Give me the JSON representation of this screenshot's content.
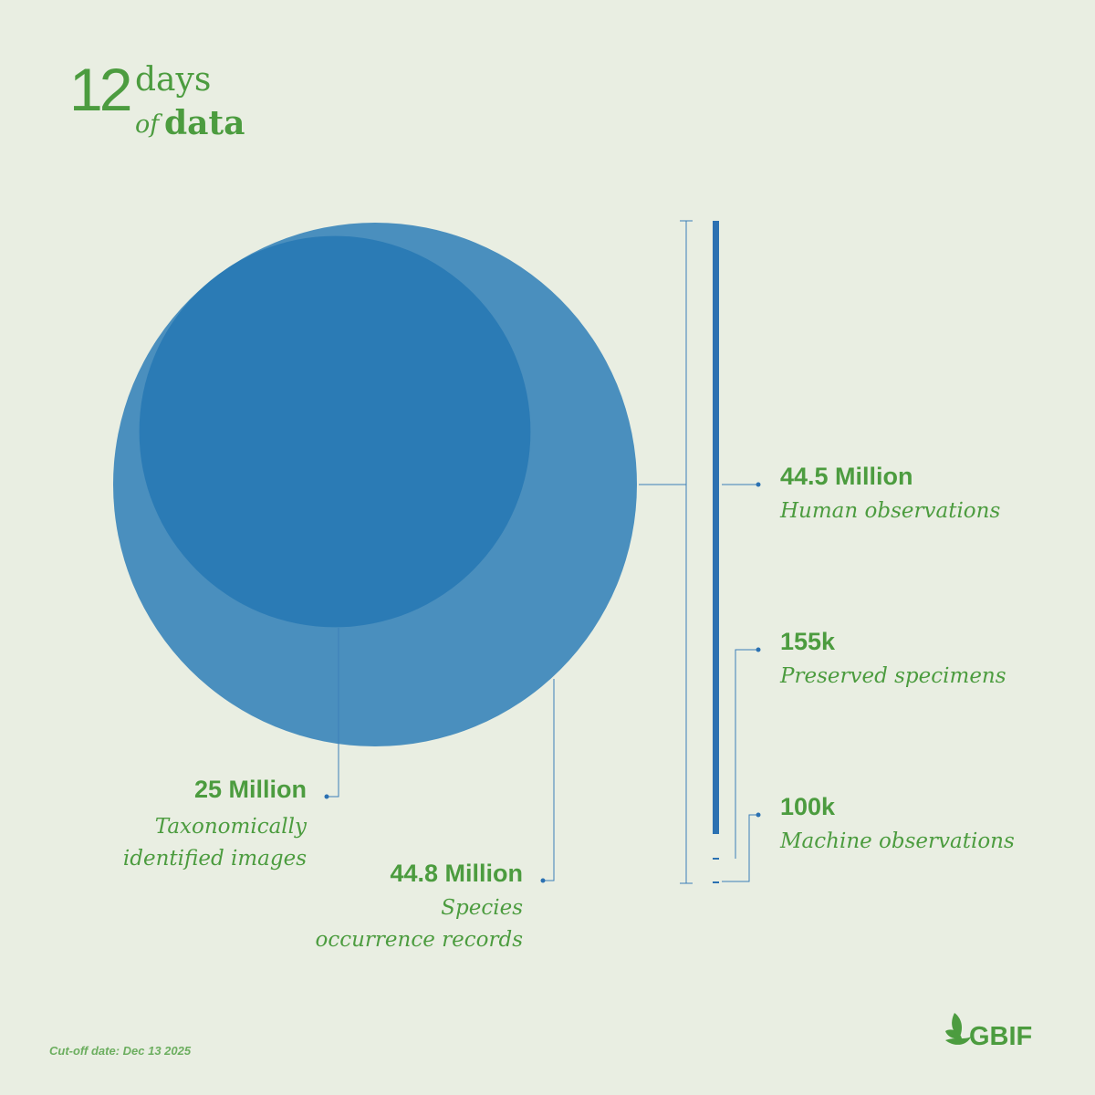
{
  "header": {
    "number": "12",
    "word_top": "days",
    "word_of": "of",
    "word_bottom": "data"
  },
  "footer": {
    "cutoff": "Cut-off date: Dec 13 2025",
    "logo_text": "GBIF"
  },
  "colors": {
    "background": "#e9eee2",
    "text_green": "#4c9c3f",
    "circle_outer": "#4a8fbe",
    "circle_inner": "#2b7bb5",
    "bar": "#2b71b2",
    "leader_line": "#3c7fb8"
  },
  "chart_data": {
    "type": "bubble-and-bar",
    "circles": [
      {
        "id": "occurrence",
        "value": 44.8,
        "unit": "Million",
        "value_label": "44.8 Million",
        "label": "Species occurrence records"
      },
      {
        "id": "images",
        "value": 25,
        "unit": "Million",
        "value_label": "25 Million",
        "label": "Taxonomically identified images"
      }
    ],
    "bar_segments": [
      {
        "id": "human",
        "value": 44500000,
        "value_label": "44.5 Million",
        "label": "Human observations"
      },
      {
        "id": "preserved",
        "value": 155000,
        "value_label": "155k",
        "label": "Preserved specimens"
      },
      {
        "id": "machine",
        "value": 100000,
        "value_label": "100k",
        "label": "Machine observations"
      }
    ]
  }
}
